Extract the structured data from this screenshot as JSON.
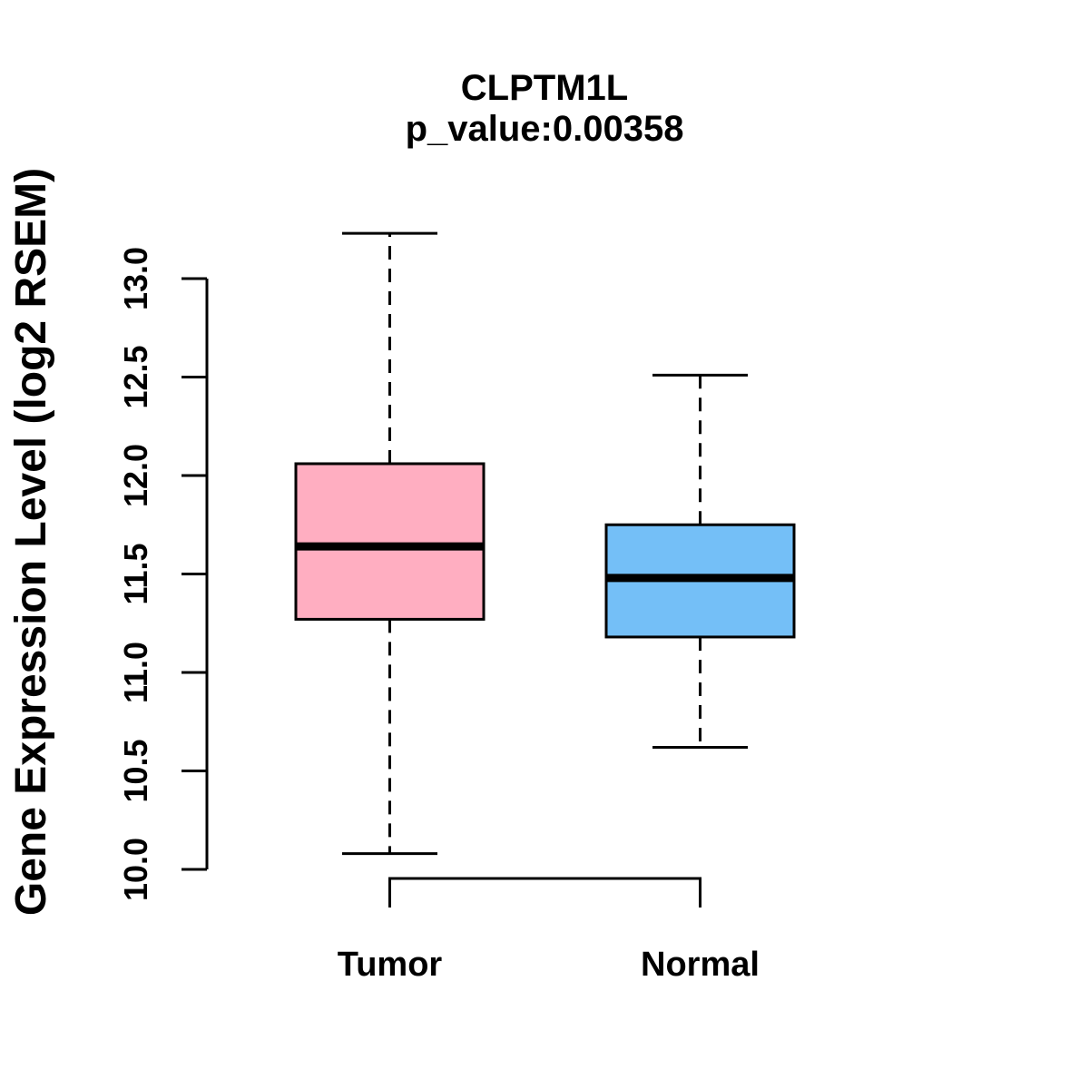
{
  "chart_data": {
    "type": "boxplot",
    "title": "CLPTM1L",
    "subtitle": "p_value:0.00358",
    "ylabel": "Gene Expression Level (log2 RSEM)",
    "xlabel": "",
    "ylim": [
      10.0,
      13.0
    ],
    "yticks": [
      10.0,
      10.5,
      11.0,
      11.5,
      12.0,
      12.5,
      13.0
    ],
    "ytick_labels": [
      "10.0",
      "10.5",
      "11.0",
      "11.5",
      "12.0",
      "12.5",
      "13.0"
    ],
    "categories": [
      "Tumor",
      "Normal"
    ],
    "series": [
      {
        "name": "Tumor",
        "lower_whisker": 10.08,
        "q1": 11.27,
        "median": 11.64,
        "q3": 12.06,
        "upper_whisker": 13.23,
        "fill_color": "#FFAEC1"
      },
      {
        "name": "Normal",
        "lower_whisker": 10.62,
        "q1": 11.18,
        "median": 11.48,
        "q3": 11.75,
        "upper_whisker": 12.51,
        "fill_color": "#74BFF7"
      }
    ],
    "border_color": "#000000",
    "whisker_line_style": "dashed",
    "grid": "off",
    "legend": "none"
  }
}
